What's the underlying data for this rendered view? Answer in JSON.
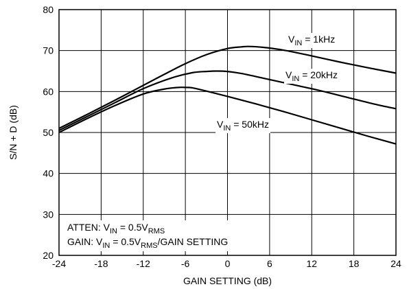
{
  "chart_data": {
    "type": "line",
    "title": "",
    "xlabel": "GAIN SETTING (dB)",
    "ylabel": "S/N + D (dB)",
    "xlim": [
      -24,
      24
    ],
    "ylim": [
      20,
      80
    ],
    "xticks": [
      -24,
      -18,
      -12,
      -6,
      0,
      6,
      12,
      18,
      24
    ],
    "yticks": [
      20,
      30,
      40,
      50,
      60,
      70,
      80
    ],
    "xtick_labels": [
      "-24",
      "-18",
      "-12",
      "-6",
      "0",
      "6",
      "12",
      "18",
      "24"
    ],
    "ytick_labels": [
      "20",
      "30",
      "40",
      "50",
      "60",
      "70",
      "80"
    ],
    "grid": true,
    "line_color": "#000000",
    "series": [
      {
        "label": {
          "pre": "V",
          "sub": "IN",
          "post": " = 1kHz"
        },
        "x": [
          -24,
          -20,
          -16,
          -12,
          -9,
          -6,
          -3,
          0,
          2,
          3,
          5,
          8,
          12,
          16,
          20,
          24
        ],
        "y": [
          51,
          54.4,
          57.9,
          61.5,
          64.2,
          66.8,
          69.0,
          70.5,
          70.9,
          71.0,
          70.8,
          70.1,
          68.7,
          67.2,
          65.8,
          64.5
        ]
      },
      {
        "label": {
          "pre": "V",
          "sub": "IN",
          "post": " = 20kHz"
        },
        "x": [
          -24,
          -20,
          -16,
          -12,
          -8,
          -5,
          -3,
          -1.5,
          0,
          2,
          5,
          9,
          13,
          17,
          21,
          24
        ],
        "y": [
          50.5,
          53.9,
          57.3,
          60.7,
          63.3,
          64.6,
          64.9,
          65.0,
          64.9,
          64.4,
          63.3,
          61.8,
          60.3,
          58.6,
          56.9,
          55.8
        ]
      },
      {
        "label": {
          "pre": "V",
          "sub": "IN",
          "post": " = 50kHz"
        },
        "x": [
          -24,
          -20,
          -16,
          -12,
          -9,
          -7,
          -6,
          -5,
          -3,
          0,
          4,
          8,
          12,
          16,
          20,
          24
        ],
        "y": [
          50.0,
          53.4,
          56.6,
          59.4,
          60.6,
          61.0,
          61.0,
          60.9,
          60.1,
          58.8,
          57.0,
          55.1,
          53.1,
          51.1,
          49.1,
          47.2
        ]
      }
    ],
    "annotations": [
      {
        "pre": "ATTEN: V",
        "sub": "IN",
        "mid": " = 0.5V",
        "sub2": "RMS",
        "post": ""
      },
      {
        "pre": "GAIN: V",
        "sub": "IN",
        "mid": " = 0.5V",
        "sub2": "RMS",
        "post": "/GAIN SETTING"
      }
    ]
  }
}
